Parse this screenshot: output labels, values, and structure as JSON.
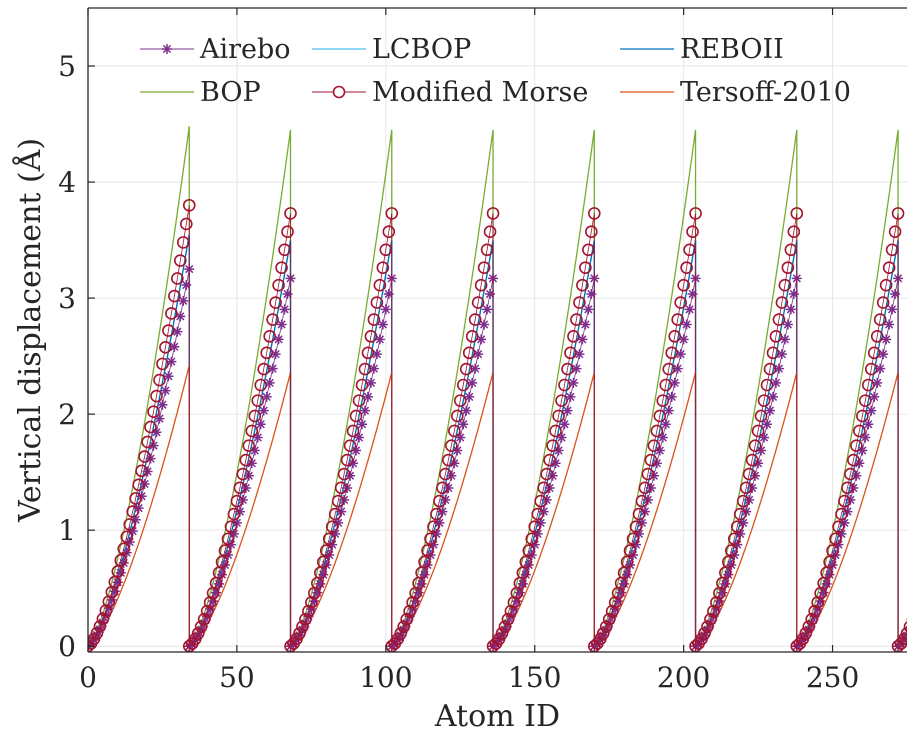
{
  "chart_data": {
    "type": "line",
    "title": "",
    "xlabel": "Atom ID",
    "ylabel": "Vertical displacement (Å)",
    "xlim": [
      0,
      275
    ],
    "ylim": [
      -0.05,
      5.5
    ],
    "xticks": [
      0,
      50,
      100,
      150,
      200,
      250
    ],
    "yticks": [
      0,
      1,
      2,
      3,
      4,
      5
    ],
    "xtick_labels": [
      "0",
      "50",
      "100",
      "150",
      "200",
      "250"
    ],
    "ytick_labels": [
      "0",
      "1",
      "2",
      "3",
      "4",
      "5"
    ],
    "grid": true,
    "legend_position": "top",
    "period_atoms": 34,
    "series": [
      {
        "name": "Airebo",
        "color": "#7E2F8E",
        "style": "markers",
        "marker": "asterisk",
        "peak_first": 3.25,
        "peak_others": 3.17
      },
      {
        "name": "BOP",
        "color": "#77AC30",
        "style": "line",
        "peak_first": 4.48,
        "peak_others": 4.45
      },
      {
        "name": "LCBOP",
        "color": "#4DBEEE",
        "style": "line",
        "peak_first": 3.55,
        "peak_others": 3.5
      },
      {
        "name": "Modified Morse",
        "color": "#A2142F",
        "style": "markers",
        "marker": "circle",
        "peak_first": 3.8,
        "peak_others": 3.73
      },
      {
        "name": "REBOII",
        "color": "#0072BD",
        "style": "line",
        "peak_first": 3.55,
        "peak_others": 3.5
      },
      {
        "name": "Tersoff-2010",
        "color": "#D95319",
        "style": "line",
        "peak_first": 2.42,
        "peak_others": 2.36
      }
    ]
  }
}
